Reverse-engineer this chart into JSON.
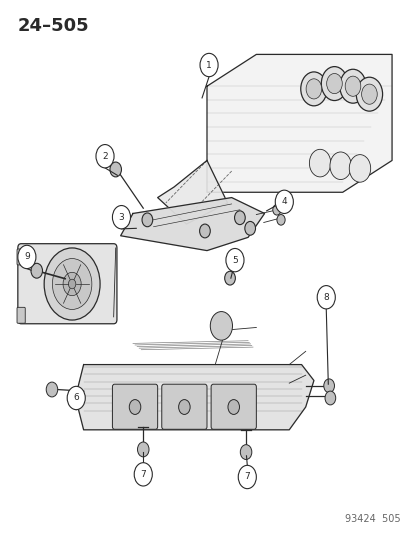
{
  "title": "24–505",
  "catalog_number": "93424  505",
  "bg_color": "#ffffff",
  "line_color": "#2a2a2a",
  "title_fontsize": 13,
  "catalog_fontsize": 7,
  "fig_width": 4.14,
  "fig_height": 5.33,
  "dpi": 100
}
